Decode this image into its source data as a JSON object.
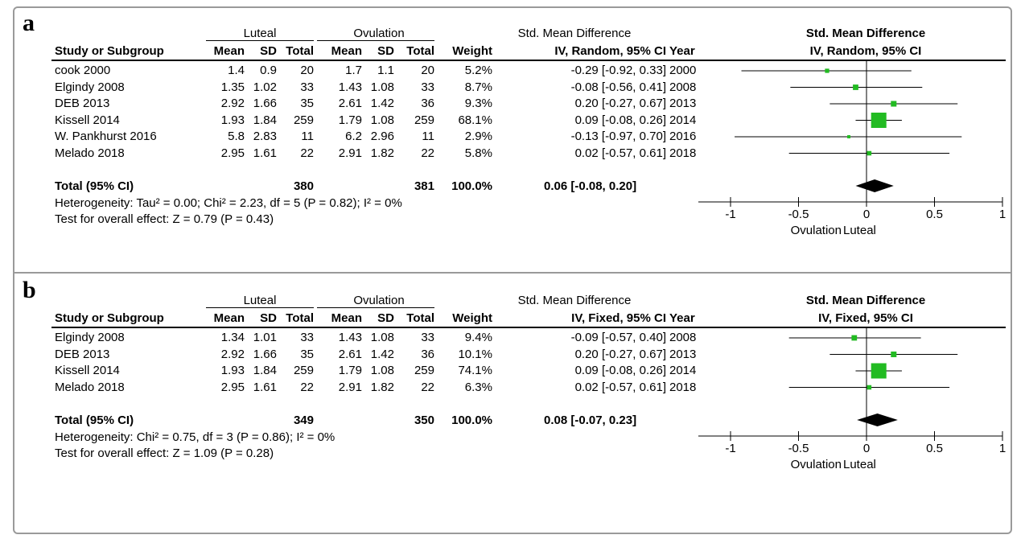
{
  "panels": [
    {
      "id": "a",
      "label": "a",
      "group1": "Luteal",
      "group2": "Ovulation",
      "smd_header": "Std. Mean Difference",
      "columns": [
        "Study or Subgroup",
        "Mean",
        "SD",
        "Total",
        "Mean",
        "SD",
        "Total",
        "Weight",
        "IV, Random, 95% CI",
        "Year"
      ],
      "plot_title": "Std. Mean Difference",
      "plot_subtitle": "IV, Random, 95% CI",
      "studies": [
        {
          "name": "cook 2000",
          "m1": "1.4",
          "sd1": "0.9",
          "n1": "20",
          "m2": "1.7",
          "sd2": "1.1",
          "n2": "20",
          "weight": "5.2%",
          "ci": "-0.29 [-0.92, 0.33]",
          "year": "2000"
        },
        {
          "name": "Elgindy 2008",
          "m1": "1.35",
          "sd1": "1.02",
          "n1": "33",
          "m2": "1.43",
          "sd2": "1.08",
          "n2": "33",
          "weight": "8.7%",
          "ci": "-0.08 [-0.56, 0.41]",
          "year": "2008"
        },
        {
          "name": "DEB 2013",
          "m1": "2.92",
          "sd1": "1.66",
          "n1": "35",
          "m2": "2.61",
          "sd2": "1.42",
          "n2": "36",
          "weight": "9.3%",
          "ci": "0.20 [-0.27, 0.67]",
          "year": "2013"
        },
        {
          "name": "Kissell 2014",
          "m1": "1.93",
          "sd1": "1.84",
          "n1": "259",
          "m2": "1.79",
          "sd2": "1.08",
          "n2": "259",
          "weight": "68.1%",
          "ci": "0.09 [-0.08, 0.26]",
          "year": "2014"
        },
        {
          "name": "W. Pankhurst 2016",
          "m1": "5.8",
          "sd1": "2.83",
          "n1": "11",
          "m2": "6.2",
          "sd2": "2.96",
          "n2": "11",
          "weight": "2.9%",
          "ci": "-0.13 [-0.97, 0.70]",
          "year": "2016"
        },
        {
          "name": "Melado 2018",
          "m1": "2.95",
          "sd1": "1.61",
          "n1": "22",
          "m2": "2.91",
          "sd2": "1.82",
          "n2": "22",
          "weight": "5.8%",
          "ci": "0.02 [-0.57, 0.61]",
          "year": "2018"
        }
      ],
      "total": {
        "label": "Total (95% CI)",
        "n1": "380",
        "n2": "381",
        "weight": "100.0%",
        "ci": "0.06 [-0.08, 0.20]"
      },
      "heterogeneity": "Heterogeneity: Tau² = 0.00; Chi² = 2.23, df = 5 (P = 0.82); I² = 0%",
      "overall": "Test for overall effect: Z = 0.79 (P = 0.43)",
      "favours_left": "Ovulation",
      "favours_right": "Luteal"
    },
    {
      "id": "b",
      "label": "b",
      "group1": "Luteal",
      "group2": "Ovulation",
      "smd_header": "Std. Mean Difference",
      "columns": [
        "Study or Subgroup",
        "Mean",
        "SD",
        "Total",
        "Mean",
        "SD",
        "Total",
        "Weight",
        "IV, Fixed, 95% CI",
        "Year"
      ],
      "plot_title": "Std. Mean Difference",
      "plot_subtitle": "IV, Fixed, 95% CI",
      "studies": [
        {
          "name": "Elgindy 2008",
          "m1": "1.34",
          "sd1": "1.01",
          "n1": "33",
          "m2": "1.43",
          "sd2": "1.08",
          "n2": "33",
          "weight": "9.4%",
          "ci": "-0.09 [-0.57, 0.40]",
          "year": "2008"
        },
        {
          "name": "DEB 2013",
          "m1": "2.92",
          "sd1": "1.66",
          "n1": "35",
          "m2": "2.61",
          "sd2": "1.42",
          "n2": "36",
          "weight": "10.1%",
          "ci": "0.20 [-0.27, 0.67]",
          "year": "2013"
        },
        {
          "name": "Kissell 2014",
          "m1": "1.93",
          "sd1": "1.84",
          "n1": "259",
          "m2": "1.79",
          "sd2": "1.08",
          "n2": "259",
          "weight": "74.1%",
          "ci": "0.09 [-0.08, 0.26]",
          "year": "2014"
        },
        {
          "name": "Melado 2018",
          "m1": "2.95",
          "sd1": "1.61",
          "n1": "22",
          "m2": "2.91",
          "sd2": "1.82",
          "n2": "22",
          "weight": "6.3%",
          "ci": "0.02 [-0.57, 0.61]",
          "year": "2018"
        }
      ],
      "total": {
        "label": "Total (95% CI)",
        "n1": "349",
        "n2": "350",
        "weight": "100.0%",
        "ci": "0.08 [-0.07, 0.23]"
      },
      "heterogeneity": "Heterogeneity: Chi² = 0.75, df = 3 (P = 0.86); I² = 0%",
      "overall": "Test for overall effect: Z = 1.09 (P = 0.28)",
      "favours_left": "Ovulation",
      "favours_right": "Luteal"
    }
  ],
  "chart_data": [
    {
      "type": "scatter",
      "subtype": "forest",
      "xlim": [
        -1,
        1
      ],
      "xticks": [
        "-1",
        "-0.5",
        "0",
        "0.5",
        "1"
      ],
      "tick_values": [
        -1,
        -0.5,
        0,
        0.5,
        1
      ],
      "colors": {
        "marker": "#22bb22",
        "diamond": "#000000",
        "line": "#000000"
      },
      "studies": [
        {
          "name": "cook 2000",
          "est": -0.29,
          "lo": -0.92,
          "hi": 0.33,
          "weight": 5.2
        },
        {
          "name": "Elgindy 2008",
          "est": -0.08,
          "lo": -0.56,
          "hi": 0.41,
          "weight": 8.7
        },
        {
          "name": "DEB 2013",
          "est": 0.2,
          "lo": -0.27,
          "hi": 0.67,
          "weight": 9.3
        },
        {
          "name": "Kissell 2014",
          "est": 0.09,
          "lo": -0.08,
          "hi": 0.26,
          "weight": 68.1
        },
        {
          "name": "W. Pankhurst 2016",
          "est": -0.13,
          "lo": -0.97,
          "hi": 0.7,
          "weight": 2.9
        },
        {
          "name": "Melado 2018",
          "est": 0.02,
          "lo": -0.57,
          "hi": 0.61,
          "weight": 5.8
        }
      ],
      "pooled": {
        "est": 0.06,
        "lo": -0.08,
        "hi": 0.2
      }
    },
    {
      "type": "scatter",
      "subtype": "forest",
      "xlim": [
        -1,
        1
      ],
      "xticks": [
        "-1",
        "-0.5",
        "0",
        "0.5",
        "1"
      ],
      "tick_values": [
        -1,
        -0.5,
        0,
        0.5,
        1
      ],
      "colors": {
        "marker": "#22bb22",
        "diamond": "#000000",
        "line": "#000000"
      },
      "studies": [
        {
          "name": "Elgindy 2008",
          "est": -0.09,
          "lo": -0.57,
          "hi": 0.4,
          "weight": 9.4
        },
        {
          "name": "DEB 2013",
          "est": 0.2,
          "lo": -0.27,
          "hi": 0.67,
          "weight": 10.1
        },
        {
          "name": "Kissell 2014",
          "est": 0.09,
          "lo": -0.08,
          "hi": 0.26,
          "weight": 74.1
        },
        {
          "name": "Melado 2018",
          "est": 0.02,
          "lo": -0.57,
          "hi": 0.61,
          "weight": 6.3
        }
      ],
      "pooled": {
        "est": 0.08,
        "lo": -0.07,
        "hi": 0.23
      }
    }
  ]
}
